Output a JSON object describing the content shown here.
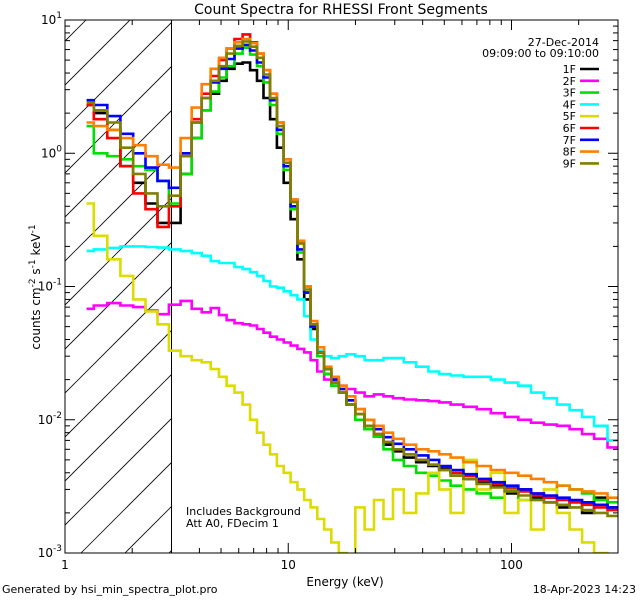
{
  "chart_data": {
    "type": "line",
    "title": "Count Spectra for RHESSI Front Segments",
    "xlabel": "Energy (keV)",
    "ylabel_parts": [
      "counts cm",
      "-2",
      " s",
      "-1",
      " keV",
      "-1"
    ],
    "xscale": "log",
    "yscale": "log",
    "xlim": [
      1,
      300
    ],
    "ylim": [
      0.001,
      10
    ],
    "x_ticks": [
      1,
      10,
      100
    ],
    "x_tick_labels": [
      "1",
      "10",
      "100"
    ],
    "y_tick_labels": [
      {
        "mantissa": "10",
        "exp": "-3",
        "value": 0.001
      },
      {
        "mantissa": "10",
        "exp": "-2",
        "value": 0.01
      },
      {
        "mantissa": "10",
        "exp": "-1",
        "value": 0.1
      },
      {
        "mantissa": "10",
        "exp": "0",
        "value": 1
      },
      {
        "mantissa": "10",
        "exp": "1",
        "value": 10
      }
    ],
    "excluded_region_kev": [
      1.2,
      3.0
    ],
    "date": "27-Dec-2014",
    "time_range": "09:09:00 to 09:10:00",
    "annotations": [
      "Includes Background",
      "Att A0, FDecim 1"
    ],
    "x": [
      1.25,
      1.45,
      1.65,
      1.9,
      2.15,
      2.45,
      2.75,
      3.1,
      3.5,
      3.9,
      4.3,
      4.7,
      5.1,
      5.5,
      6.0,
      6.5,
      7.0,
      7.5,
      8.0,
      8.6,
      9.2,
      9.9,
      10.6,
      11.4,
      12.2,
      13.0,
      14.0,
      15.0,
      16.2,
      17.5,
      19.0,
      21.0,
      23.0,
      25.5,
      28.0,
      31.0,
      35.0,
      40.0,
      45.0,
      50.0,
      57.0,
      65.0,
      75.0,
      87.0,
      100.0,
      115.0,
      130.0,
      150.0,
      170.0,
      195.0,
      220.0,
      250.0,
      290.0
    ],
    "series": [
      {
        "name": "1F",
        "color": "#000000",
        "values": [
          2.3,
          2.0,
          1.5,
          0.8,
          0.6,
          0.42,
          0.3,
          0.3,
          0.7,
          1.3,
          2.1,
          2.8,
          3.5,
          4.3,
          4.7,
          4.8,
          4.2,
          3.5,
          2.6,
          1.8,
          1.1,
          0.6,
          0.32,
          0.16,
          0.08,
          0.048,
          0.03,
          0.022,
          0.018,
          0.016,
          0.013,
          0.011,
          0.0085,
          0.0075,
          0.0065,
          0.0058,
          0.0052,
          0.0048,
          0.0045,
          0.0043,
          0.004,
          0.0036,
          0.0034,
          0.0032,
          0.0028,
          0.003,
          0.0026,
          0.0024,
          0.0022,
          0.0024,
          0.002,
          0.0026,
          0.0022
        ]
      },
      {
        "name": "2F",
        "color": "#ff00ff",
        "values": [
          0.068,
          0.072,
          0.075,
          0.072,
          0.07,
          0.066,
          0.062,
          0.073,
          0.078,
          0.068,
          0.064,
          0.069,
          0.061,
          0.056,
          0.053,
          0.052,
          0.051,
          0.048,
          0.045,
          0.042,
          0.04,
          0.038,
          0.036,
          0.034,
          0.032,
          0.028,
          0.023,
          0.02,
          0.019,
          0.018,
          0.017,
          0.016,
          0.015,
          0.0155,
          0.015,
          0.0145,
          0.0142,
          0.014,
          0.0138,
          0.0135,
          0.013,
          0.0125,
          0.012,
          0.0112,
          0.0105,
          0.01,
          0.0095,
          0.0092,
          0.009,
          0.0085,
          0.0078,
          0.0072,
          0.0062
        ]
      },
      {
        "name": "3F",
        "color": "#00e000",
        "values": [
          1.6,
          1.0,
          0.95,
          0.9,
          0.8,
          0.75,
          0.62,
          0.42,
          0.7,
          1.3,
          2.1,
          2.9,
          3.7,
          4.5,
          5.6,
          6.2,
          5.5,
          4.5,
          3.4,
          2.3,
          1.4,
          0.75,
          0.38,
          0.18,
          0.09,
          0.05,
          0.03,
          0.022,
          0.018,
          0.016,
          0.013,
          0.01,
          0.0085,
          0.0075,
          0.006,
          0.005,
          0.0045,
          0.004,
          0.0038,
          0.0035,
          0.0032,
          0.003,
          0.0028,
          0.0026,
          0.003,
          0.0025,
          0.0025,
          0.0024,
          0.0032,
          0.003,
          0.0028,
          0.0025,
          0.0024
        ]
      },
      {
        "name": "4F",
        "color": "#00ffff",
        "values": [
          0.185,
          0.19,
          0.195,
          0.2,
          0.2,
          0.198,
          0.196,
          0.19,
          0.185,
          0.178,
          0.17,
          0.155,
          0.15,
          0.15,
          0.14,
          0.135,
          0.128,
          0.12,
          0.11,
          0.1,
          0.098,
          0.092,
          0.086,
          0.08,
          0.06,
          0.04,
          0.033,
          0.03,
          0.029,
          0.03,
          0.031,
          0.03,
          0.028,
          0.028,
          0.029,
          0.029,
          0.027,
          0.025,
          0.023,
          0.022,
          0.0215,
          0.021,
          0.021,
          0.02,
          0.019,
          0.018,
          0.016,
          0.0145,
          0.013,
          0.0118,
          0.0105,
          0.009,
          0.007
        ]
      },
      {
        "name": "5F",
        "color": "#dcdc00",
        "values": [
          0.42,
          0.24,
          0.16,
          0.12,
          0.08,
          0.065,
          0.052,
          0.033,
          0.03,
          0.028,
          0.027,
          0.024,
          0.021,
          0.018,
          0.016,
          0.013,
          0.01,
          0.008,
          0.0065,
          0.0055,
          0.0045,
          0.004,
          0.0034,
          0.003,
          0.0025,
          0.0022,
          0.0018,
          0.0015,
          0.0012,
          0.001,
          0.0009,
          0.0022,
          0.0015,
          0.0025,
          0.0018,
          0.003,
          0.002,
          0.0028,
          0.004,
          0.003,
          0.002,
          0.005,
          0.003,
          0.004,
          0.002,
          0.0025,
          0.0015,
          0.003,
          0.002,
          0.0015,
          0.0012,
          0.001,
          0.0009
        ]
      },
      {
        "name": "6F",
        "color": "#ff0000",
        "values": [
          2.3,
          1.8,
          1.3,
          0.8,
          0.5,
          0.38,
          0.28,
          0.4,
          1.0,
          1.8,
          2.8,
          3.8,
          5.0,
          6.1,
          7.2,
          7.8,
          6.8,
          5.6,
          4.2,
          2.8,
          1.7,
          0.9,
          0.45,
          0.22,
          0.1,
          0.052,
          0.032,
          0.024,
          0.02,
          0.017,
          0.014,
          0.011,
          0.009,
          0.0078,
          0.0068,
          0.006,
          0.0055,
          0.005,
          0.0046,
          0.0042,
          0.004,
          0.0038,
          0.0035,
          0.0033,
          0.0031,
          0.0029,
          0.0027,
          0.0026,
          0.0025,
          0.0024,
          0.0023,
          0.0022,
          0.0021
        ]
      },
      {
        "name": "7F",
        "color": "#0000ff",
        "values": [
          2.5,
          2.3,
          1.9,
          1.4,
          1.0,
          0.78,
          0.62,
          0.55,
          1.0,
          1.7,
          2.6,
          3.4,
          4.3,
          5.1,
          6.1,
          6.5,
          5.9,
          4.8,
          3.7,
          2.5,
          1.5,
          0.8,
          0.4,
          0.19,
          0.09,
          0.05,
          0.032,
          0.024,
          0.02,
          0.017,
          0.014,
          0.012,
          0.01,
          0.0085,
          0.0074,
          0.0066,
          0.006,
          0.0054,
          0.005,
          0.0045,
          0.0042,
          0.0039,
          0.0036,
          0.0034,
          0.0032,
          0.003,
          0.0028,
          0.0027,
          0.0026,
          0.0025,
          0.0024,
          0.0023,
          0.0022
        ]
      },
      {
        "name": "8F",
        "color": "#ff8000",
        "values": [
          1.7,
          1.6,
          1.5,
          1.3,
          1.15,
          0.95,
          0.82,
          0.78,
          1.3,
          2.2,
          3.3,
          4.3,
          5.2,
          6.1,
          6.8,
          7.2,
          6.7,
          5.6,
          4.2,
          2.8,
          1.7,
          0.9,
          0.45,
          0.22,
          0.1,
          0.055,
          0.035,
          0.025,
          0.021,
          0.018,
          0.015,
          0.012,
          0.01,
          0.009,
          0.008,
          0.0072,
          0.0065,
          0.006,
          0.0058,
          0.0055,
          0.0052,
          0.0048,
          0.0045,
          0.0042,
          0.004,
          0.0038,
          0.0036,
          0.0034,
          0.0032,
          0.003,
          0.0029,
          0.0028,
          0.0026
        ]
      },
      {
        "name": "9F",
        "color": "#808000",
        "values": [
          2.4,
          2.1,
          1.7,
          1.1,
          0.7,
          0.5,
          0.4,
          0.48,
          0.95,
          1.7,
          2.6,
          3.5,
          4.5,
          5.6,
          6.4,
          6.9,
          6.3,
          5.2,
          3.9,
          2.6,
          1.6,
          0.85,
          0.43,
          0.21,
          0.095,
          0.052,
          0.032,
          0.024,
          0.019,
          0.016,
          0.013,
          0.011,
          0.009,
          0.0078,
          0.0068,
          0.006,
          0.0055,
          0.005,
          0.0046,
          0.0042,
          0.0038,
          0.0036,
          0.0033,
          0.0031,
          0.0029,
          0.0027,
          0.0025,
          0.0024,
          0.0023,
          0.0022,
          0.0021,
          0.002,
          0.0019
        ]
      }
    ]
  },
  "footer": {
    "left": "Generated by hsi_min_spectra_plot.pro",
    "right": "18-Apr-2023 14:23"
  }
}
